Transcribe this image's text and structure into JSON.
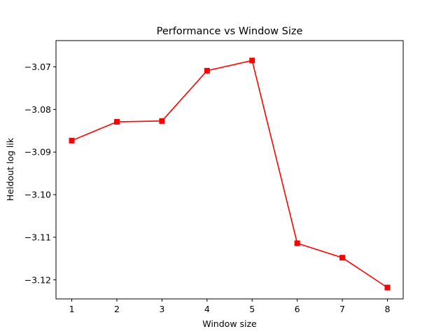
{
  "chart_data": {
    "type": "line",
    "title": "Performance vs Window Size",
    "xlabel": "Window size",
    "ylabel": "Heldout log lik",
    "x": [
      1,
      2,
      3,
      4,
      5,
      6,
      7,
      8
    ],
    "series": [
      {
        "values": [
          -3.0873,
          -3.0829,
          -3.0827,
          -3.0709,
          -3.0685,
          -3.1114,
          -3.1148,
          -3.1218
        ],
        "color": "#ff0000",
        "marker": "square"
      }
    ],
    "xticks": [
      "1",
      "2",
      "3",
      "4",
      "5",
      "6",
      "7",
      "8"
    ],
    "yticks": [
      "−3.07",
      "−3.08",
      "−3.09",
      "−3.10",
      "−3.11",
      "−3.12"
    ],
    "ytick_values": [
      -3.07,
      -3.08,
      -3.09,
      -3.1,
      -3.11,
      -3.12
    ],
    "xlim": [
      0.65,
      8.35
    ],
    "ylim": [
      -3.12447,
      -3.06383
    ],
    "grid": false,
    "legend": "none"
  }
}
